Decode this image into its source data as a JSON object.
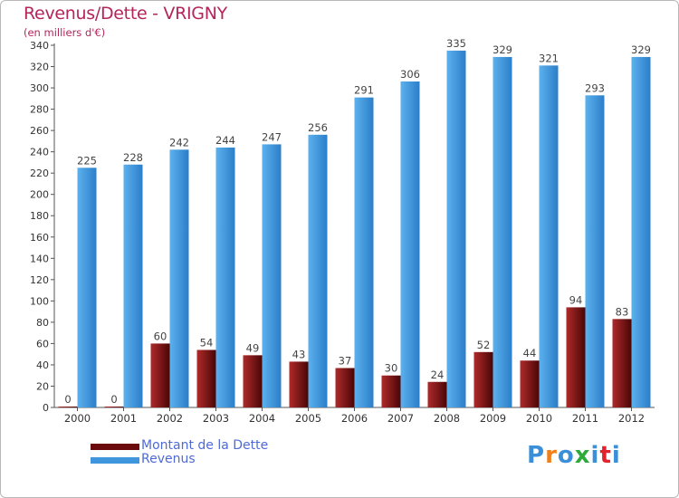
{
  "chart_data": {
    "type": "bar",
    "title": "Revenus/Dette - VRIGNY",
    "subtitle": "(en milliers d'€)",
    "categories": [
      "2000",
      "2001",
      "2002",
      "2003",
      "2004",
      "2005",
      "2006",
      "2007",
      "2008",
      "2009",
      "2010",
      "2011",
      "2012"
    ],
    "series": [
      {
        "name": "Montant de la Dette",
        "color": "#7a1010",
        "values": [
          0,
          0,
          60,
          54,
          49,
          43,
          37,
          30,
          24,
          52,
          44,
          94,
          83
        ]
      },
      {
        "name": "Revenus",
        "color": "#3f96dc",
        "values": [
          225,
          228,
          242,
          244,
          247,
          256,
          291,
          306,
          335,
          329,
          321,
          293,
          329
        ]
      }
    ],
    "ylim": [
      0,
      340
    ],
    "yticks": [
      0,
      20,
      40,
      60,
      80,
      100,
      120,
      140,
      160,
      180,
      200,
      220,
      240,
      260,
      280,
      300,
      320,
      340
    ],
    "grid": false,
    "legend_position": "bottom-left"
  },
  "logo": {
    "text": "Proxiti",
    "colors": [
      "#3a8fd8",
      "#f07f1a",
      "#3a8fd8",
      "#2eaa3d",
      "#3a8fd8",
      "#e0232f",
      "#3a8fd8"
    ]
  }
}
